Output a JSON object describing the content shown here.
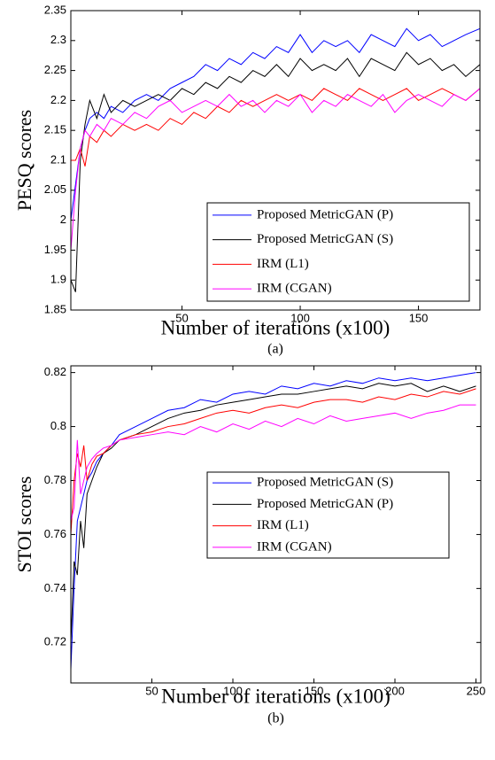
{
  "chart_data": [
    {
      "type": "line",
      "y_label": "PESQ scores",
      "x_label": "Number of iterations (x100)",
      "caption": "(a)",
      "x": [
        3,
        5,
        7,
        9,
        11,
        14,
        17,
        20,
        25,
        30,
        35,
        40,
        45,
        50,
        55,
        60,
        65,
        70,
        75,
        80,
        85,
        90,
        95,
        100,
        105,
        110,
        115,
        120,
        125,
        130,
        135,
        140,
        145,
        150,
        155,
        160,
        165,
        170,
        176
      ],
      "xlim": [
        3,
        176
      ],
      "xticks": [
        50,
        100,
        150
      ],
      "ylim": [
        1.85,
        2.35
      ],
      "yticks": [
        1.85,
        1.9,
        1.95,
        2,
        2.05,
        2.1,
        2.15,
        2.2,
        2.25,
        2.3,
        2.35
      ],
      "series": [
        {
          "name": "Proposed MetricGAN (P)",
          "color": "#0000ff",
          "values": [
            2.0,
            2.06,
            2.12,
            2.15,
            2.17,
            2.18,
            2.17,
            2.19,
            2.18,
            2.2,
            2.21,
            2.2,
            2.22,
            2.23,
            2.24,
            2.26,
            2.25,
            2.27,
            2.26,
            2.28,
            2.27,
            2.29,
            2.28,
            2.31,
            2.28,
            2.3,
            2.29,
            2.3,
            2.28,
            2.31,
            2.3,
            2.29,
            2.32,
            2.3,
            2.31,
            2.29,
            2.3,
            2.31,
            2.32
          ]
        },
        {
          "name": "Proposed MetricGAN (S)",
          "color": "#000000",
          "values": [
            1.9,
            1.88,
            2.1,
            2.16,
            2.2,
            2.17,
            2.21,
            2.18,
            2.2,
            2.19,
            2.2,
            2.21,
            2.2,
            2.22,
            2.21,
            2.23,
            2.22,
            2.24,
            2.23,
            2.25,
            2.24,
            2.26,
            2.24,
            2.27,
            2.25,
            2.26,
            2.25,
            2.27,
            2.24,
            2.27,
            2.26,
            2.25,
            2.28,
            2.26,
            2.27,
            2.25,
            2.26,
            2.24,
            2.26
          ]
        },
        {
          "name": "IRM (L1)",
          "color": "#ff0000",
          "values": [
            2.1,
            2.1,
            2.12,
            2.09,
            2.14,
            2.13,
            2.15,
            2.14,
            2.16,
            2.15,
            2.16,
            2.15,
            2.17,
            2.16,
            2.18,
            2.17,
            2.19,
            2.18,
            2.2,
            2.19,
            2.2,
            2.21,
            2.2,
            2.21,
            2.2,
            2.22,
            2.21,
            2.2,
            2.22,
            2.21,
            2.2,
            2.21,
            2.22,
            2.2,
            2.21,
            2.22,
            2.21,
            2.2,
            2.22
          ]
        },
        {
          "name": "IRM (CGAN)",
          "color": "#ff00ff",
          "values": [
            1.95,
            2.05,
            2.12,
            2.15,
            2.14,
            2.16,
            2.15,
            2.17,
            2.16,
            2.18,
            2.17,
            2.19,
            2.2,
            2.18,
            2.19,
            2.2,
            2.19,
            2.21,
            2.19,
            2.2,
            2.18,
            2.2,
            2.19,
            2.21,
            2.18,
            2.2,
            2.19,
            2.21,
            2.2,
            2.19,
            2.21,
            2.18,
            2.2,
            2.21,
            2.2,
            2.19,
            2.21,
            2.2,
            2.22
          ]
        }
      ]
    },
    {
      "type": "line",
      "y_label": "STOI scores",
      "x_label": "Number of iterations (x100)",
      "caption": "(b)",
      "x": [
        0,
        2,
        4,
        6,
        8,
        10,
        13,
        16,
        20,
        25,
        30,
        40,
        50,
        60,
        70,
        80,
        90,
        100,
        110,
        120,
        130,
        140,
        150,
        160,
        170,
        180,
        190,
        200,
        210,
        220,
        230,
        240,
        250
      ],
      "xlim": [
        0,
        253
      ],
      "xticks": [
        50,
        100,
        150,
        200,
        250
      ],
      "ylim": [
        0.705,
        0.8225
      ],
      "yticks": [
        0.72,
        0.74,
        0.76,
        0.78,
        0.8,
        0.82
      ],
      "series": [
        {
          "name": "Proposed MetricGAN (S)",
          "color": "#0000ff",
          "values": [
            0.71,
            0.74,
            0.765,
            0.77,
            0.775,
            0.78,
            0.783,
            0.787,
            0.79,
            0.793,
            0.797,
            0.8,
            0.803,
            0.806,
            0.807,
            0.81,
            0.809,
            0.812,
            0.813,
            0.812,
            0.815,
            0.814,
            0.816,
            0.815,
            0.817,
            0.816,
            0.818,
            0.817,
            0.818,
            0.817,
            0.818,
            0.819,
            0.82
          ]
        },
        {
          "name": "Proposed MetricGAN (P)",
          "color": "#000000",
          "values": [
            0.72,
            0.75,
            0.745,
            0.765,
            0.755,
            0.775,
            0.78,
            0.785,
            0.79,
            0.792,
            0.795,
            0.797,
            0.8,
            0.803,
            0.805,
            0.806,
            0.808,
            0.809,
            0.81,
            0.811,
            0.812,
            0.812,
            0.813,
            0.814,
            0.815,
            0.814,
            0.816,
            0.815,
            0.816,
            0.813,
            0.815,
            0.813,
            0.815
          ]
        },
        {
          "name": "IRM (L1)",
          "color": "#ff0000",
          "values": [
            0.76,
            0.78,
            0.79,
            0.785,
            0.793,
            0.78,
            0.786,
            0.789,
            0.79,
            0.793,
            0.795,
            0.797,
            0.798,
            0.8,
            0.801,
            0.803,
            0.805,
            0.806,
            0.805,
            0.807,
            0.808,
            0.807,
            0.809,
            0.81,
            0.81,
            0.809,
            0.811,
            0.81,
            0.812,
            0.811,
            0.813,
            0.812,
            0.814
          ]
        },
        {
          "name": "IRM (CGAN)",
          "color": "#ff00ff",
          "values": [
            0.765,
            0.77,
            0.795,
            0.775,
            0.78,
            0.785,
            0.788,
            0.79,
            0.792,
            0.793,
            0.795,
            0.796,
            0.797,
            0.798,
            0.797,
            0.8,
            0.798,
            0.801,
            0.799,
            0.802,
            0.8,
            0.803,
            0.801,
            0.804,
            0.802,
            0.803,
            0.804,
            0.805,
            0.803,
            0.805,
            0.806,
            0.808,
            0.808
          ]
        }
      ]
    }
  ]
}
